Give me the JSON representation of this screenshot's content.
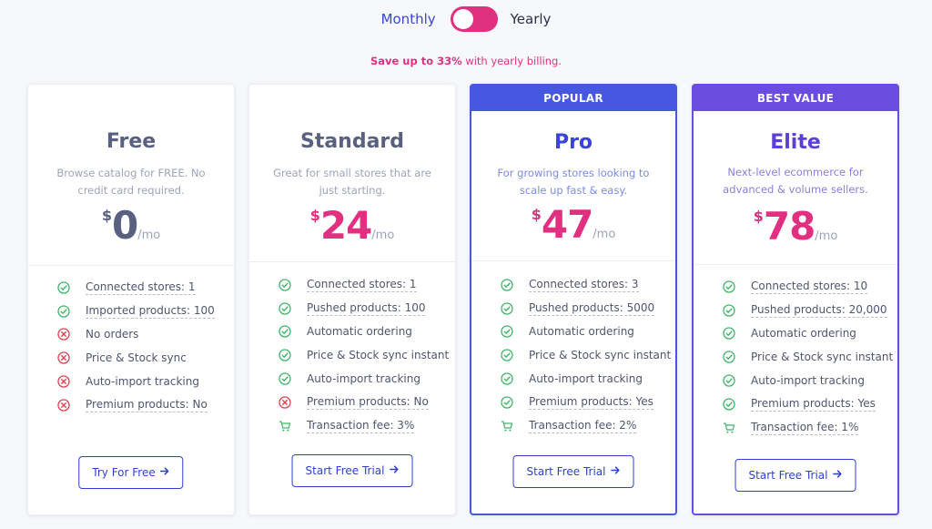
{
  "billing_toggle": {
    "monthly_label": "Monthly",
    "yearly_label": "Yearly",
    "state": "yearly",
    "accent": "#e0307f"
  },
  "save_note": {
    "highlight": "Save up to 33%",
    "rest": " with yearly billing."
  },
  "colors": {
    "pink": "#e0307f",
    "slate": "#5a6180",
    "blue": "#3a45d6",
    "purple": "#5b3fd8",
    "check_green": "#3fb56a",
    "cross_red": "#e0404f"
  },
  "plans": [
    {
      "name": "Free",
      "description": "Browse catalog for FREE. No credit card required.",
      "currency": "$",
      "price": "0",
      "period": "/mo",
      "cta": "Try For Free",
      "features": [
        {
          "label": "Connected stores: 1",
          "icon": "check-icon"
        },
        {
          "label": "Imported products: 100",
          "icon": "check-icon"
        },
        {
          "label": "No orders",
          "icon": "cross-icon"
        },
        {
          "label": "Price & Stock sync",
          "icon": "cross-icon"
        },
        {
          "label": "Auto-import tracking",
          "icon": "cross-icon"
        },
        {
          "label": "Premium products: No",
          "icon": "cross-icon"
        }
      ]
    },
    {
      "name": "Standard",
      "description": "Great for small stores that are just starting.",
      "currency": "$",
      "price": "24",
      "period": "/mo",
      "cta": "Start Free Trial",
      "features": [
        {
          "label": "Connected stores: 1",
          "icon": "check-icon"
        },
        {
          "label": "Pushed products: 100",
          "icon": "check-icon"
        },
        {
          "label": "Automatic ordering",
          "icon": "check-icon"
        },
        {
          "label": "Price & Stock sync instant",
          "icon": "check-icon"
        },
        {
          "label": "Auto-import tracking",
          "icon": "check-icon"
        },
        {
          "label": "Premium products: No",
          "icon": "cross-icon"
        },
        {
          "label": "Transaction fee: 3%",
          "icon": "cart-icon"
        }
      ]
    },
    {
      "name": "Pro",
      "banner": "POPULAR",
      "description": "For growing stores looking to scale up fast & easy.",
      "currency": "$",
      "price": "47",
      "period": "/mo",
      "cta": "Start Free Trial",
      "features": [
        {
          "label": "Connected stores: 3",
          "icon": "check-icon"
        },
        {
          "label": "Pushed products: 5000",
          "icon": "check-icon"
        },
        {
          "label": "Automatic ordering",
          "icon": "check-icon"
        },
        {
          "label": "Price & Stock sync instant",
          "icon": "check-icon"
        },
        {
          "label": "Auto-import tracking",
          "icon": "check-icon"
        },
        {
          "label": "Premium products: Yes",
          "icon": "check-icon"
        },
        {
          "label": "Transaction fee: 2%",
          "icon": "cart-icon"
        }
      ]
    },
    {
      "name": "Elite",
      "banner": "BEST VALUE",
      "description": "Next-level ecommerce for advanced & volume sellers.",
      "currency": "$",
      "price": "78",
      "period": "/mo",
      "cta": "Start Free Trial",
      "features": [
        {
          "label": "Connected stores: 10",
          "icon": "check-icon"
        },
        {
          "label": "Pushed products: 20,000",
          "icon": "check-icon"
        },
        {
          "label": "Automatic ordering",
          "icon": "check-icon"
        },
        {
          "label": "Price & Stock sync instant",
          "icon": "check-icon"
        },
        {
          "label": "Auto-import tracking",
          "icon": "check-icon"
        },
        {
          "label": "Premium products: Yes",
          "icon": "check-icon"
        },
        {
          "label": "Transaction fee: 1%",
          "icon": "cart-icon"
        }
      ]
    }
  ]
}
